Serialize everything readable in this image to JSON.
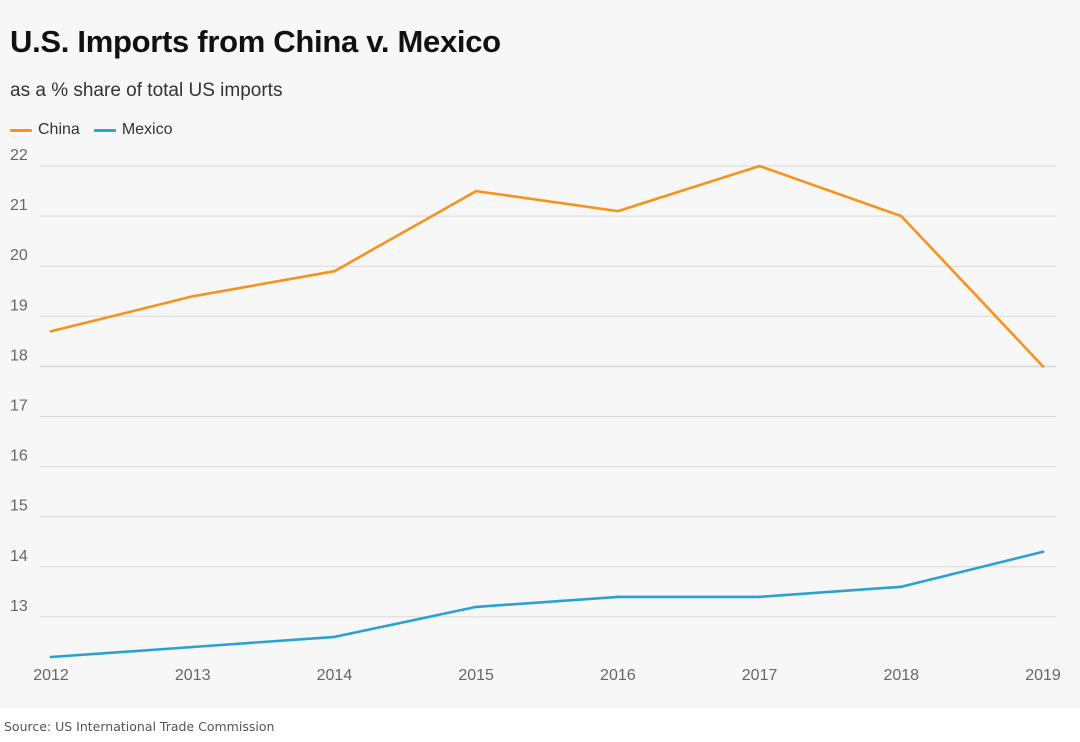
{
  "title": "U.S. Imports from China v. Mexico",
  "subtitle": "as a % share of total US imports",
  "source": "Source: US International Trade Commission",
  "colors": {
    "China": "#f5931e",
    "Mexico": "#2aa1cf",
    "grid": "#d9d9d9",
    "background": "#f7f7f7"
  },
  "chart_data": {
    "type": "line",
    "title": "U.S. Imports from China v. Mexico",
    "subtitle": "as a % share of total US imports",
    "x": [
      "2012",
      "2013",
      "2014",
      "2015",
      "2016",
      "2017",
      "2018",
      "2019"
    ],
    "series": [
      {
        "name": "China",
        "values": [
          18.7,
          19.4,
          19.9,
          21.5,
          21.1,
          22.0,
          21.0,
          18.0
        ]
      },
      {
        "name": "Mexico",
        "values": [
          12.2,
          12.4,
          12.6,
          13.2,
          13.4,
          13.4,
          13.6,
          14.3
        ]
      }
    ],
    "yticks": [
      "13",
      "14",
      "15",
      "16",
      "17",
      "18",
      "19",
      "20",
      "21",
      "22"
    ],
    "ylim": [
      12.2,
      22
    ],
    "grid": true,
    "legend": "top-left"
  }
}
